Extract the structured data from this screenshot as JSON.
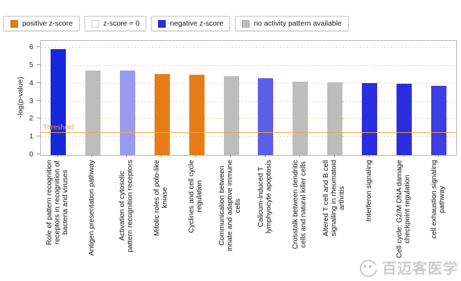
{
  "legend": {
    "items": [
      {
        "label": "positive z-score",
        "color": "#e87d18",
        "border": "#c96a12"
      },
      {
        "label": "z-score = 0",
        "color": "#ffffff",
        "border": "#c9c9c9"
      },
      {
        "label": "negative z-score",
        "color": "#2232e0",
        "border": "#1a23b8"
      },
      {
        "label": "no activity pattern available",
        "color": "#bdbdbd",
        "border": "#a8a8a8"
      }
    ]
  },
  "chart_data": {
    "type": "bar",
    "title": "",
    "xlabel": "",
    "ylabel": "-log(p-value)",
    "ylim": [
      0,
      6.4
    ],
    "yticks": [
      0,
      1,
      2,
      3,
      4,
      5,
      6
    ],
    "grid": "dotted horizontal gridlines at integer values",
    "legend_position": "top",
    "threshold": {
      "label": "Threshold",
      "value": 1.25,
      "line_color": "#f0a840",
      "text_color": "#f0a028"
    },
    "categories": [
      "Role of pattern recognition\nreceptors in recognition of\nbacteria and viruses",
      "Antigen presentation pathway",
      "Activation of cytosolic\npattern recognition receptors",
      "Mitotic roles of polo-like\nkniase",
      "Cyclines and cell cycle\nregulation",
      "Communication between\ninnate and adaptive immune\ncells",
      "Calicum-induced T\nlymphyocyte apoptosis",
      "Crosstalk between dendritic\ncells and natural killer cells",
      "Altered T cell and B cell\nsignalling in rheumatoid\narthritis",
      "Interferon signaling",
      "Cell cycle: G2/M DNA damage\ncheckpoint regulation",
      "cell exhaustion signaling\npathway"
    ],
    "values": [
      5.95,
      4.75,
      4.74,
      4.55,
      4.5,
      4.44,
      4.32,
      4.1,
      4.08,
      4.02,
      3.98,
      3.88
    ],
    "bar_colors": [
      "#1528dc",
      "#bdbdbd",
      "#9a9af0",
      "#e87d18",
      "#e87d18",
      "#bdbdbd",
      "#5c5fe8",
      "#bdbdbd",
      "#bdbdbd",
      "#2b2de0",
      "#2b2de0",
      "#3c3ee2"
    ]
  },
  "watermark": {
    "text": "百迈客医学"
  }
}
